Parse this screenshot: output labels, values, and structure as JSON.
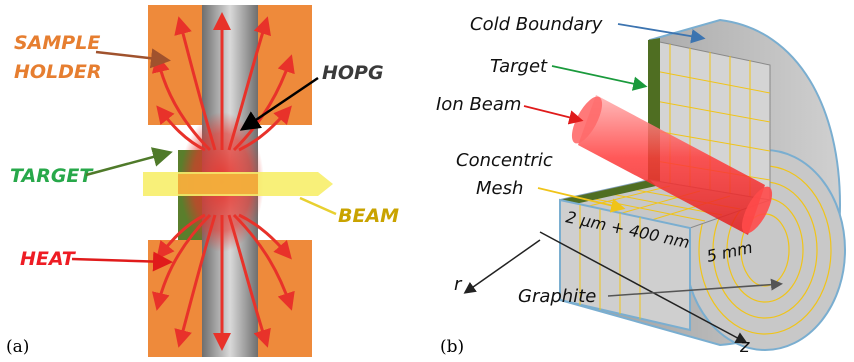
{
  "panel_a": {
    "caption": "(a)",
    "labels": {
      "sample_holder_line1": "SAMPLE",
      "sample_holder_line2": "HOLDER",
      "hopg": "HOPG",
      "target": "TARGET",
      "beam": "BEAM",
      "heat": "HEAT"
    },
    "colors": {
      "holder": "#ee8a3b",
      "graphite": "#777777",
      "target": "#5a7e2c",
      "heat": "#e8322a",
      "beam": "#f7ee6a",
      "sample_holder_text": "#e67e30",
      "target_text": "#27a84a",
      "beam_text": "#c9a300",
      "heat_text": "#ee1c24",
      "hopg_text": "#3a3a3a"
    }
  },
  "panel_b": {
    "caption": "(b)",
    "labels": {
      "cold_boundary": "Cold Boundary",
      "target": "Target",
      "ion_beam": "Ion Beam",
      "concentric_line1": "Concentric",
      "concentric_line2": "Mesh",
      "graphite": "Graphite",
      "thickness": "2 μm + 400 nm",
      "length": "5 mm",
      "axis_r": "r",
      "axis_z": "z"
    },
    "colors": {
      "face": "#c4c4c4",
      "target_layer": "#4f6e22",
      "boundary": "#7aaed0",
      "mesh": "#f0c419",
      "beam": "#ff2a2a",
      "arrow_cold": "#3c74b0",
      "arrow_target": "#1a9a3c",
      "arrow_ion": "#e01b1b",
      "arrow_mesh": "#f0c419"
    }
  }
}
